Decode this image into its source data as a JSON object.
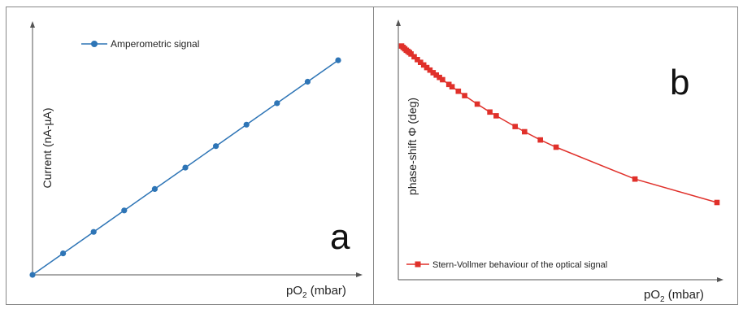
{
  "chart_data": [
    {
      "type": "line",
      "panel_label": "a",
      "xlabel_main": "pO",
      "xlabel_sub": "2",
      "xlabel_rest": " (mbar)",
      "ylabel": "Current (nA-µA)",
      "legend_placement": "top-left",
      "grid": false,
      "xlim": [
        0,
        10
      ],
      "ylim": [
        0,
        10.3
      ],
      "series": [
        {
          "name": "Amperometric signal",
          "color": "#2e75b6",
          "marker": "circle",
          "x": [
            0,
            1,
            2,
            3,
            4,
            5,
            6,
            7,
            8,
            9,
            10
          ],
          "y": [
            0,
            0.9,
            1.8,
            2.7,
            3.6,
            4.5,
            5.4,
            6.3,
            7.2,
            8.1,
            9.0
          ]
        }
      ]
    },
    {
      "type": "line",
      "panel_label": "b",
      "xlabel_main": "pO",
      "xlabel_sub": "2",
      "xlabel_rest": " (mbar)",
      "ylabel": "phase-shift Φ (deg)",
      "legend_placement": "bottom-left",
      "grid": false,
      "xlim": [
        0,
        10
      ],
      "ylim": [
        0,
        10
      ],
      "series": [
        {
          "name": "Stern-Vollmer behaviour of the optical signal",
          "color": "#e0302a",
          "marker": "square",
          "x": [
            0.0,
            0.05,
            0.1,
            0.15,
            0.2,
            0.25,
            0.3,
            0.4,
            0.5,
            0.6,
            0.7,
            0.8,
            0.9,
            1.0,
            1.1,
            1.2,
            1.3,
            1.5,
            1.6,
            1.8,
            2.0,
            2.4,
            2.8,
            3.0,
            3.6,
            3.9,
            4.4,
            4.9,
            7.4,
            10.0
          ],
          "y": [
            9.98,
            9.92,
            9.86,
            9.8,
            9.75,
            9.7,
            9.64,
            9.52,
            9.4,
            9.28,
            9.17,
            9.06,
            8.95,
            8.84,
            8.74,
            8.64,
            8.54,
            8.34,
            8.24,
            8.05,
            7.86,
            7.5,
            7.16,
            7.0,
            6.54,
            6.32,
            5.97,
            5.66,
            4.3,
            3.3
          ]
        }
      ]
    }
  ]
}
